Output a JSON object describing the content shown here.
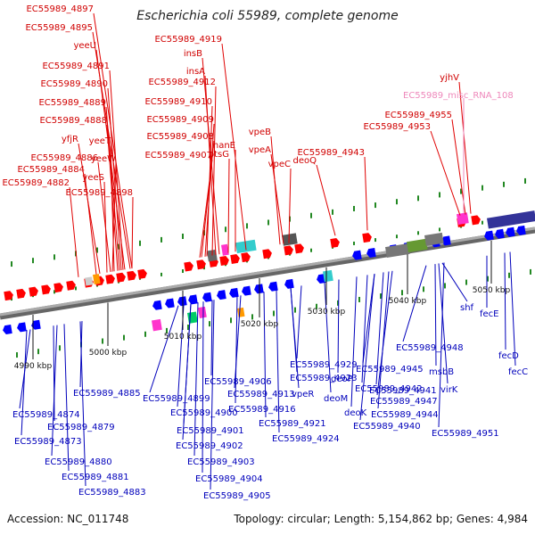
{
  "title": "Escherichia coli 55989, complete genome",
  "footer": {
    "accession": "Accession: NC_011748",
    "summary": "Topology: circular; Length: 5,154,862 bp; Genes: 4,984"
  },
  "colors": {
    "forward_gene": "#ff0000",
    "reverse_gene": "#0000ff",
    "top_label": "#d00000",
    "rna_label": "#ee88bb",
    "bottom_label": "#0000bb",
    "backbone": "#888888",
    "gc_tick": "#228822"
  },
  "ticks": [
    "4990 kbp",
    "5000 kbp",
    "5010 kbp",
    "5020 kbp",
    "5030 kbp",
    "5040 kbp",
    "5050 kbp"
  ],
  "top_labels": [
    "EC55989_4897",
    "EC55989_4895",
    "yeeU",
    "EC55989_4891",
    "EC55989_4890",
    "EC55989_4889",
    "EC55989_4888",
    "yfjR",
    "yeeT",
    "EC55989_4886",
    "yeeW",
    "EC55989_4884",
    "yeeS",
    "EC55989_4882",
    "EC55989_4898",
    "EC55989_4919",
    "insB",
    "insA",
    "EC55989_4912",
    "EC55989_4910",
    "EC55989_4909",
    "EC55989_4908",
    "nanE",
    "EC55989_4907",
    "ptsG",
    "vpeB",
    "vpeA",
    "vpeC",
    "deoQ",
    "EC55989_4943",
    "yjhV",
    "EC55989_4955",
    "EC55989_4953"
  ],
  "rna_labels": [
    "EC55989_misc_RNA_108"
  ],
  "bottom_labels": [
    "shf",
    "fecE",
    "EC55989_4948",
    "fecD",
    "EC55989_4885",
    "EC55989_4906",
    "EC55989_4929",
    "EC55989_4945",
    "msbB",
    "fecC",
    "EC55989_4899",
    "EC55989_4913",
    "EC55989_4923",
    "deoP",
    "EC55989_4942",
    "EC55989_4874",
    "EC55989_4900",
    "vpeR",
    "EC55989_4941",
    "virK",
    "EC55989_4879",
    "EC55989_4916",
    "deoM",
    "EC55989_4947",
    "EC55989_4901",
    "EC55989_4921",
    "deoK",
    "EC55989_4944",
    "EC55989_4873",
    "EC55989_4924",
    "EC55989_4940",
    "EC55989_4951",
    "EC55989_4902",
    "EC55989_4880",
    "EC55989_4903",
    "EC55989_4881",
    "EC55989_4904",
    "EC55989_4883",
    "EC55989_4905"
  ]
}
